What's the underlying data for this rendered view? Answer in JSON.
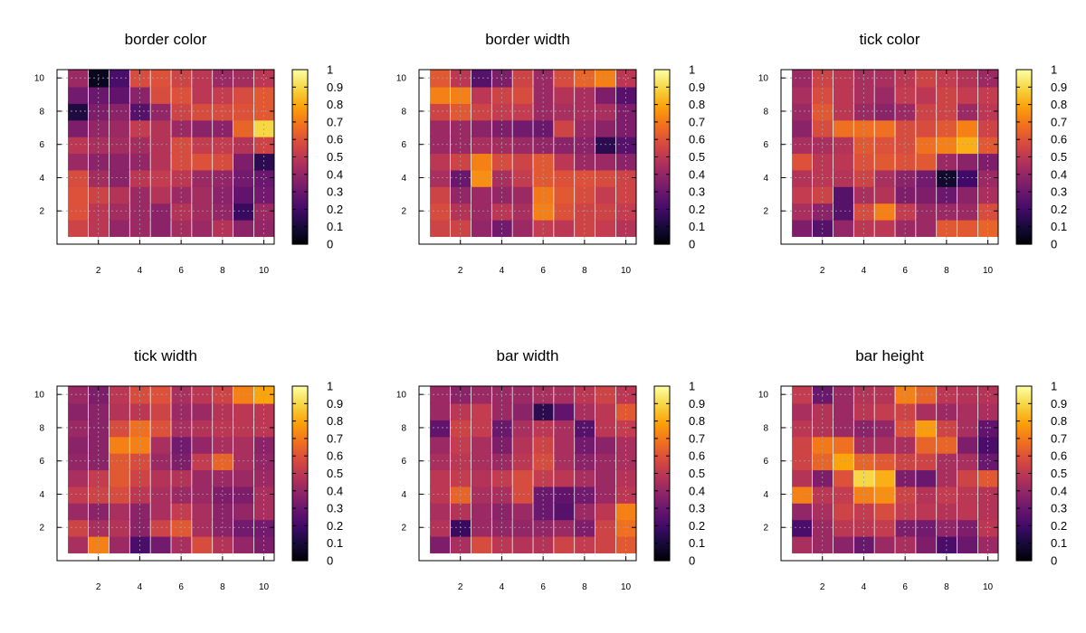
{
  "chart_data": [
    {
      "type": "heatmap",
      "title": "border color",
      "xticks": [
        2,
        4,
        6,
        8,
        10
      ],
      "yticks": [
        2,
        4,
        6,
        8,
        10
      ],
      "xlim": [
        0,
        10.5
      ],
      "ylim": [
        0,
        10.5
      ],
      "colorbar_ticks": [
        0,
        0.1,
        0.2,
        0.3,
        0.4,
        0.5,
        0.6,
        0.7,
        0.8,
        0.9,
        1
      ],
      "colorbar_range": [
        0,
        1
      ],
      "grid": true,
      "values": [
        [
          0.55,
          0.5,
          0.4,
          0.42,
          0.38,
          0.44,
          0.42,
          0.48,
          0.38,
          0.4
        ],
        [
          0.6,
          0.5,
          0.44,
          0.42,
          0.38,
          0.48,
          0.44,
          0.4,
          0.18,
          0.42
        ],
        [
          0.6,
          0.55,
          0.48,
          0.42,
          0.48,
          0.42,
          0.44,
          0.38,
          0.28,
          0.32
        ],
        [
          0.58,
          0.44,
          0.38,
          0.5,
          0.52,
          0.5,
          0.42,
          0.4,
          0.32,
          0.3
        ],
        [
          0.42,
          0.38,
          0.38,
          0.4,
          0.48,
          0.58,
          0.6,
          0.58,
          0.35,
          0.15
        ],
        [
          0.5,
          0.45,
          0.44,
          0.44,
          0.48,
          0.58,
          0.52,
          0.52,
          0.48,
          0.55
        ],
        [
          0.35,
          0.4,
          0.42,
          0.52,
          0.48,
          0.42,
          0.38,
          0.38,
          0.65,
          0.9
        ],
        [
          0.12,
          0.35,
          0.38,
          0.25,
          0.4,
          0.55,
          0.58,
          0.58,
          0.6,
          0.62
        ],
        [
          0.32,
          0.3,
          0.28,
          0.38,
          0.58,
          0.6,
          0.5,
          0.52,
          0.58,
          0.62
        ],
        [
          0.42,
          0.05,
          0.22,
          0.58,
          0.6,
          0.55,
          0.5,
          0.42,
          0.44,
          0.5
        ]
      ]
    },
    {
      "type": "heatmap",
      "title": "border width",
      "xticks": [
        2,
        4,
        6,
        8,
        10
      ],
      "yticks": [
        2,
        4,
        6,
        8,
        10
      ],
      "xlim": [
        0,
        10.5
      ],
      "ylim": [
        0,
        10.5
      ],
      "colorbar_ticks": [
        0,
        0.1,
        0.2,
        0.3,
        0.4,
        0.5,
        0.6,
        0.7,
        0.8,
        0.9,
        1
      ],
      "colorbar_range": [
        0,
        1
      ],
      "grid": true,
      "values": [
        [
          0.55,
          0.55,
          0.4,
          0.32,
          0.42,
          0.52,
          0.5,
          0.55,
          0.52,
          0.48
        ],
        [
          0.58,
          0.48,
          0.42,
          0.5,
          0.45,
          0.72,
          0.6,
          0.55,
          0.55,
          0.52
        ],
        [
          0.55,
          0.4,
          0.42,
          0.4,
          0.42,
          0.7,
          0.62,
          0.58,
          0.52,
          0.55
        ],
        [
          0.45,
          0.3,
          0.75,
          0.45,
          0.52,
          0.62,
          0.6,
          0.6,
          0.58,
          0.55
        ],
        [
          0.5,
          0.55,
          0.72,
          0.58,
          0.55,
          0.62,
          0.5,
          0.42,
          0.42,
          0.38
        ],
        [
          0.42,
          0.42,
          0.45,
          0.44,
          0.42,
          0.4,
          0.38,
          0.38,
          0.15,
          0.25
        ],
        [
          0.42,
          0.42,
          0.38,
          0.35,
          0.32,
          0.3,
          0.55,
          0.42,
          0.38,
          0.35
        ],
        [
          0.55,
          0.62,
          0.55,
          0.52,
          0.52,
          0.42,
          0.45,
          0.45,
          0.45,
          0.35
        ],
        [
          0.72,
          0.72,
          0.5,
          0.55,
          0.58,
          0.42,
          0.48,
          0.45,
          0.35,
          0.25
        ],
        [
          0.62,
          0.5,
          0.25,
          0.35,
          0.55,
          0.42,
          0.58,
          0.65,
          0.72,
          0.5
        ]
      ]
    },
    {
      "type": "heatmap",
      "title": "tick color",
      "xticks": [
        2,
        4,
        6,
        8,
        10
      ],
      "yticks": [
        2,
        4,
        6,
        8,
        10
      ],
      "xlim": [
        0,
        10.5
      ],
      "ylim": [
        0,
        10.5
      ],
      "colorbar_ticks": [
        0,
        0.1,
        0.2,
        0.3,
        0.4,
        0.5,
        0.6,
        0.7,
        0.8,
        0.9,
        1
      ],
      "colorbar_range": [
        0,
        1
      ],
      "grid": true,
      "values": [
        [
          0.35,
          0.25,
          0.4,
          0.5,
          0.5,
          0.42,
          0.42,
          0.62,
          0.62,
          0.65
        ],
        [
          0.45,
          0.38,
          0.25,
          0.58,
          0.72,
          0.52,
          0.42,
          0.42,
          0.42,
          0.58
        ],
        [
          0.52,
          0.55,
          0.25,
          0.45,
          0.48,
          0.35,
          0.35,
          0.3,
          0.38,
          0.45
        ],
        [
          0.48,
          0.5,
          0.48,
          0.55,
          0.45,
          0.38,
          0.32,
          0.08,
          0.2,
          0.42
        ],
        [
          0.6,
          0.5,
          0.5,
          0.6,
          0.62,
          0.6,
          0.62,
          0.42,
          0.38,
          0.35
        ],
        [
          0.45,
          0.45,
          0.48,
          0.62,
          0.6,
          0.58,
          0.68,
          0.72,
          0.82,
          0.62
        ],
        [
          0.38,
          0.58,
          0.68,
          0.68,
          0.68,
          0.58,
          0.58,
          0.62,
          0.72,
          0.55
        ],
        [
          0.42,
          0.62,
          0.5,
          0.42,
          0.38,
          0.42,
          0.55,
          0.55,
          0.42,
          0.5
        ],
        [
          0.45,
          0.58,
          0.5,
          0.45,
          0.42,
          0.52,
          0.5,
          0.55,
          0.52,
          0.52
        ],
        [
          0.42,
          0.55,
          0.5,
          0.45,
          0.45,
          0.5,
          0.55,
          0.52,
          0.48,
          0.42
        ]
      ]
    },
    {
      "type": "heatmap",
      "title": "tick width",
      "xticks": [
        2,
        4,
        6,
        8,
        10
      ],
      "yticks": [
        2,
        4,
        6,
        8,
        10
      ],
      "xlim": [
        0,
        10.5
      ],
      "ylim": [
        0,
        10.5
      ],
      "colorbar_ticks": [
        0,
        0.1,
        0.2,
        0.3,
        0.4,
        0.5,
        0.6,
        0.7,
        0.8,
        0.9,
        1
      ],
      "colorbar_range": [
        0,
        1
      ],
      "grid": true,
      "values": [
        [
          0.45,
          0.72,
          0.42,
          0.22,
          0.32,
          0.45,
          0.58,
          0.48,
          0.4,
          0.35
        ],
        [
          0.55,
          0.45,
          0.48,
          0.38,
          0.55,
          0.62,
          0.45,
          0.38,
          0.32,
          0.32
        ],
        [
          0.42,
          0.38,
          0.45,
          0.38,
          0.45,
          0.52,
          0.45,
          0.38,
          0.4,
          0.45
        ],
        [
          0.52,
          0.55,
          0.58,
          0.5,
          0.45,
          0.42,
          0.42,
          0.35,
          0.35,
          0.45
        ],
        [
          0.45,
          0.52,
          0.62,
          0.55,
          0.48,
          0.48,
          0.42,
          0.42,
          0.42,
          0.42
        ],
        [
          0.4,
          0.38,
          0.62,
          0.58,
          0.42,
          0.35,
          0.52,
          0.65,
          0.45,
          0.4
        ],
        [
          0.38,
          0.38,
          0.72,
          0.72,
          0.45,
          0.32,
          0.4,
          0.45,
          0.45,
          0.38
        ],
        [
          0.42,
          0.38,
          0.58,
          0.68,
          0.6,
          0.45,
          0.48,
          0.5,
          0.5,
          0.5
        ],
        [
          0.38,
          0.38,
          0.48,
          0.5,
          0.55,
          0.42,
          0.42,
          0.48,
          0.5,
          0.5
        ],
        [
          0.42,
          0.35,
          0.5,
          0.58,
          0.6,
          0.45,
          0.5,
          0.55,
          0.72,
          0.8
        ]
      ]
    },
    {
      "type": "heatmap",
      "title": "bar width",
      "xticks": [
        2,
        4,
        6,
        8,
        10
      ],
      "yticks": [
        2,
        4,
        6,
        8,
        10
      ],
      "xlim": [
        0,
        10.5
      ],
      "ylim": [
        0,
        10.5
      ],
      "colorbar_ticks": [
        0,
        0.1,
        0.2,
        0.3,
        0.4,
        0.5,
        0.6,
        0.7,
        0.8,
        0.9,
        1
      ],
      "colorbar_range": [
        0,
        1
      ],
      "grid": true,
      "values": [
        [
          0.35,
          0.45,
          0.58,
          0.5,
          0.48,
          0.48,
          0.55,
          0.52,
          0.55,
          0.62
        ],
        [
          0.48,
          0.18,
          0.42,
          0.4,
          0.4,
          0.4,
          0.42,
          0.35,
          0.55,
          0.68
        ],
        [
          0.45,
          0.48,
          0.42,
          0.38,
          0.42,
          0.3,
          0.25,
          0.42,
          0.5,
          0.72
        ],
        [
          0.5,
          0.65,
          0.45,
          0.45,
          0.58,
          0.3,
          0.28,
          0.32,
          0.42,
          0.5
        ],
        [
          0.5,
          0.52,
          0.48,
          0.52,
          0.58,
          0.52,
          0.5,
          0.45,
          0.42,
          0.48
        ],
        [
          0.45,
          0.5,
          0.45,
          0.42,
          0.5,
          0.58,
          0.45,
          0.38,
          0.42,
          0.45
        ],
        [
          0.42,
          0.52,
          0.45,
          0.35,
          0.48,
          0.55,
          0.45,
          0.32,
          0.38,
          0.45
        ],
        [
          0.28,
          0.55,
          0.52,
          0.3,
          0.45,
          0.5,
          0.45,
          0.25,
          0.5,
          0.52
        ],
        [
          0.42,
          0.5,
          0.52,
          0.42,
          0.38,
          0.15,
          0.28,
          0.45,
          0.5,
          0.62
        ],
        [
          0.42,
          0.38,
          0.42,
          0.42,
          0.42,
          0.45,
          0.45,
          0.5,
          0.55,
          0.5
        ]
      ]
    },
    {
      "type": "heatmap",
      "title": "bar height",
      "xticks": [
        2,
        4,
        6,
        8,
        10
      ],
      "yticks": [
        2,
        4,
        6,
        8,
        10
      ],
      "xlim": [
        0,
        10.5
      ],
      "ylim": [
        0,
        10.5
      ],
      "colorbar_ticks": [
        0,
        0.1,
        0.2,
        0.3,
        0.4,
        0.5,
        0.6,
        0.7,
        0.8,
        0.9,
        1
      ],
      "colorbar_range": [
        0,
        1
      ],
      "grid": true,
      "values": [
        [
          0.45,
          0.42,
          0.38,
          0.3,
          0.42,
          0.45,
          0.35,
          0.22,
          0.3,
          0.42
        ],
        [
          0.22,
          0.42,
          0.5,
          0.5,
          0.52,
          0.35,
          0.32,
          0.4,
          0.35,
          0.5
        ],
        [
          0.4,
          0.45,
          0.55,
          0.52,
          0.58,
          0.52,
          0.5,
          0.48,
          0.5,
          0.48
        ],
        [
          0.72,
          0.5,
          0.52,
          0.72,
          0.75,
          0.55,
          0.48,
          0.52,
          0.5,
          0.48
        ],
        [
          0.48,
          0.35,
          0.6,
          0.9,
          0.82,
          0.35,
          0.3,
          0.45,
          0.55,
          0.62
        ],
        [
          0.55,
          0.65,
          0.8,
          0.65,
          0.62,
          0.55,
          0.55,
          0.45,
          0.45,
          0.3
        ],
        [
          0.55,
          0.7,
          0.68,
          0.45,
          0.45,
          0.45,
          0.65,
          0.65,
          0.35,
          0.22
        ],
        [
          0.5,
          0.48,
          0.42,
          0.38,
          0.4,
          0.6,
          0.78,
          0.55,
          0.45,
          0.28
        ],
        [
          0.45,
          0.48,
          0.42,
          0.5,
          0.52,
          0.55,
          0.45,
          0.42,
          0.45,
          0.45
        ],
        [
          0.52,
          0.3,
          0.42,
          0.48,
          0.48,
          0.72,
          0.65,
          0.5,
          0.48,
          0.48
        ]
      ]
    }
  ]
}
